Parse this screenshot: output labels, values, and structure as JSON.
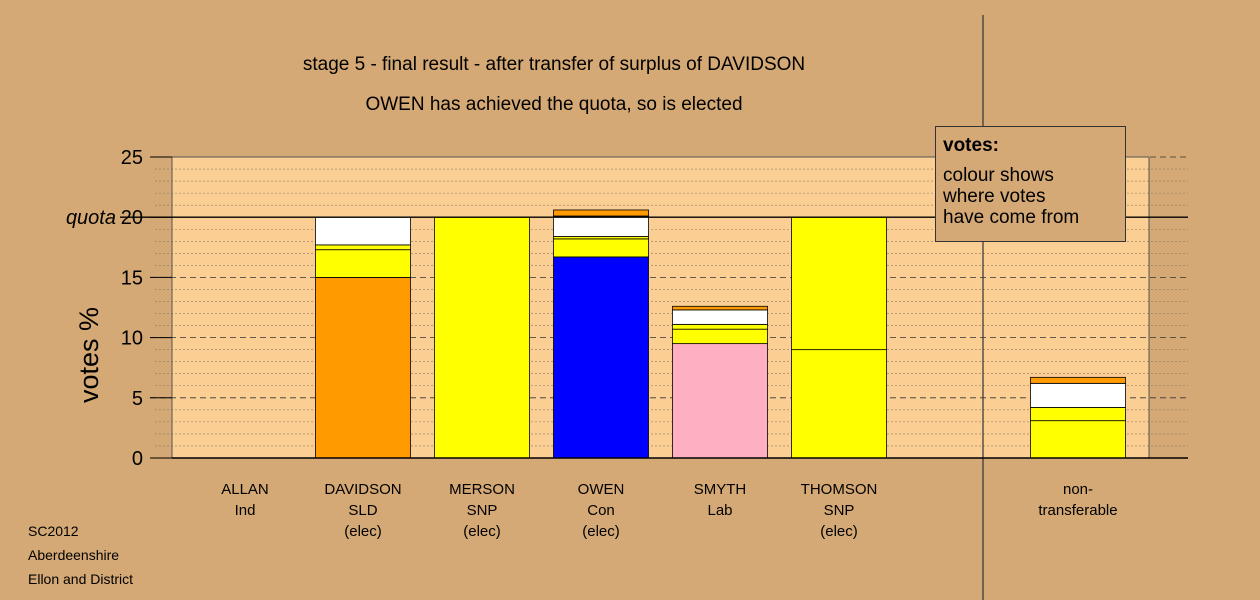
{
  "titles": {
    "line1": "stage 5 - final result - after transfer of surplus of DAVIDSON",
    "line2": "OWEN has achieved the quota, so is elected"
  },
  "legend": {
    "title": "votes:",
    "text": "colour shows\nwhere votes\nhave come from"
  },
  "footer": [
    "SC2012",
    "Aberdeenshire",
    "Ellon and District"
  ],
  "colors": {
    "background": "#d4a975",
    "plot_area": "#fbcf94",
    "orange": "#ff9a00",
    "yellow": "#ffff00",
    "white": "#ffffff",
    "blue": "#0000ff",
    "pink": "#ffb0c0"
  },
  "chart_data": {
    "type": "bar",
    "stacked": true,
    "ylabel": "votes %",
    "ylim": [
      0,
      25
    ],
    "yticks": [
      0,
      5,
      10,
      15,
      20,
      25
    ],
    "quota": 20,
    "quota_label": "quota",
    "grid": true,
    "categories": [
      {
        "name": "ALLAN",
        "party": "Ind",
        "status": ""
      },
      {
        "name": "DAVIDSON",
        "party": "SLD",
        "status": "(elec)"
      },
      {
        "name": "MERSON",
        "party": "SNP",
        "status": "(elec)"
      },
      {
        "name": "OWEN",
        "party": "Con",
        "status": "(elec)"
      },
      {
        "name": "SMYTH",
        "party": "Lab",
        "status": ""
      },
      {
        "name": "THOMSON",
        "party": "SNP",
        "status": "(elec)"
      },
      {
        "name": "non-",
        "party": "transferable",
        "status": ""
      }
    ],
    "stacks": [
      [],
      [
        {
          "color": "#ff9a00",
          "value": 15.0
        },
        {
          "color": "#ffff00",
          "value": 2.3
        },
        {
          "color": "#ffff00",
          "value": 0.4
        },
        {
          "color": "#ffffff",
          "value": 2.3
        }
      ],
      [
        {
          "color": "#ffff00",
          "value": 20.0
        }
      ],
      [
        {
          "color": "#0000ff",
          "value": 16.7
        },
        {
          "color": "#ffff00",
          "value": 1.5
        },
        {
          "color": "#ffff00",
          "value": 0.2
        },
        {
          "color": "#ffffff",
          "value": 1.7
        },
        {
          "color": "#ff9a00",
          "value": 0.5
        }
      ],
      [
        {
          "color": "#ffb0c0",
          "value": 9.5
        },
        {
          "color": "#ffff00",
          "value": 1.2
        },
        {
          "color": "#ffff00",
          "value": 0.4
        },
        {
          "color": "#ffffff",
          "value": 1.2
        },
        {
          "color": "#ff9a00",
          "value": 0.3
        }
      ],
      [
        {
          "color": "#ffff00",
          "value": 9.0
        },
        {
          "color": "#ffff00",
          "value": 11.0
        }
      ],
      [
        {
          "color": "#ffff00",
          "value": 3.1
        },
        {
          "color": "#ffff00",
          "value": 1.1
        },
        {
          "color": "#ffffff",
          "value": 2.0
        },
        {
          "color": "#ff9a00",
          "value": 0.5
        }
      ]
    ]
  }
}
